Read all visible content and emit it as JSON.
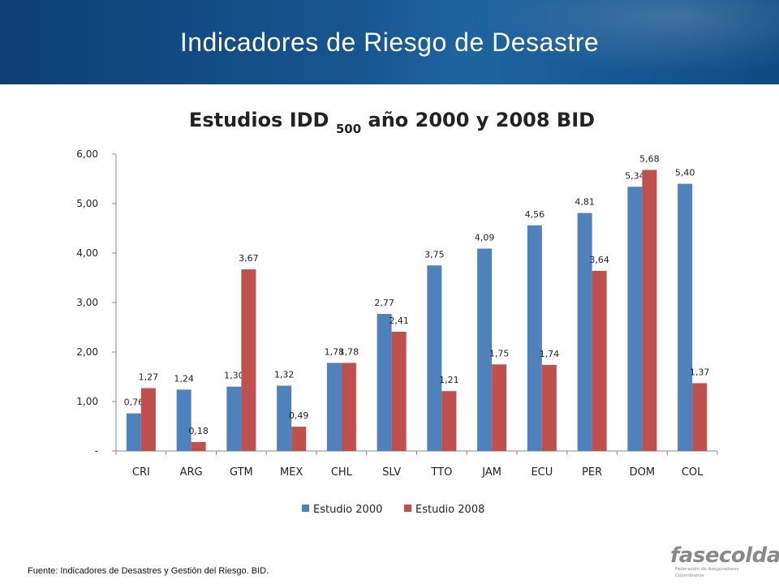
{
  "header": {
    "title": "Indicadores de Riesgo de Desastre"
  },
  "chart_data": {
    "type": "bar",
    "title": "Estudios IDD",
    "title_subscript": "500",
    "title_rest": "año 2000 y 2008 BID",
    "categories": [
      "CRI",
      "ARG",
      "GTM",
      "MEX",
      "CHL",
      "SLV",
      "TTO",
      "JAM",
      "ECU",
      "PER",
      "DOM",
      "COL"
    ],
    "series": [
      {
        "name": "Estudio 2000",
        "color": "#4f81bd",
        "values": [
          0.76,
          1.24,
          1.3,
          1.32,
          1.78,
          2.77,
          3.75,
          4.09,
          4.56,
          4.81,
          5.34,
          5.4
        ],
        "labels": [
          "0,76",
          "1,24",
          "1,30",
          "1,32",
          "1,78",
          "2,77",
          "3,75",
          "4,09",
          "4,56",
          "4,81",
          "5,34",
          "5,40"
        ]
      },
      {
        "name": "Estudio 2008",
        "color": "#c0504d",
        "values": [
          1.27,
          0.18,
          3.67,
          0.49,
          1.78,
          2.41,
          1.21,
          1.75,
          1.74,
          3.64,
          5.68,
          1.37
        ],
        "labels": [
          "1,27",
          "0,18",
          "3,67",
          "0,49",
          "1,78",
          "2,41",
          "1,21",
          "1,75",
          "1,74",
          "3,64",
          "5,68",
          "1,37"
        ]
      }
    ],
    "y_ticks": [
      "-",
      "1,00",
      "2,00",
      "3,00",
      "4,00",
      "5,00",
      "6,00"
    ],
    "ylim": [
      0,
      6
    ],
    "grid": false,
    "legend_position": "bottom"
  },
  "footer": {
    "source": "Fuente: Indicadores de Desastres y Gestión del Riesgo. BID."
  },
  "logo": {
    "text": "fasecolda",
    "subtitle": "Federación de Aseguradores Colombianos",
    "color": "#8a8a8a"
  }
}
